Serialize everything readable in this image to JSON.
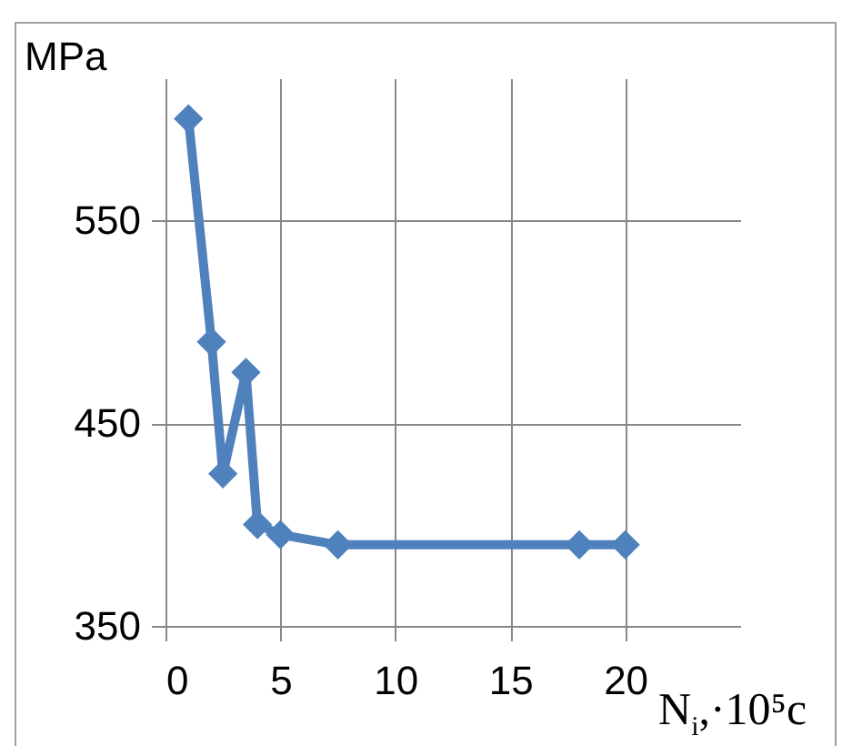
{
  "chart_data": {
    "type": "line",
    "ylabel": "MPa",
    "xlabel": "N$_{i}$,·10⁵c",
    "x": [
      1,
      2,
      2.5,
      3.5,
      4,
      5,
      7.5,
      18,
      20
    ],
    "series": [
      {
        "color": "#4f81bd",
        "values": [
          600,
          490,
          425,
          475,
          400,
          395,
          390,
          390,
          390
        ]
      }
    ],
    "xlim": [
      0,
      25
    ],
    "xticks": [
      0,
      5,
      10,
      15,
      20
    ],
    "ylim": [
      350,
      620
    ],
    "yticks": [
      350,
      450,
      550
    ],
    "grid": true,
    "marker": "diamond",
    "line_style": "solid"
  }
}
